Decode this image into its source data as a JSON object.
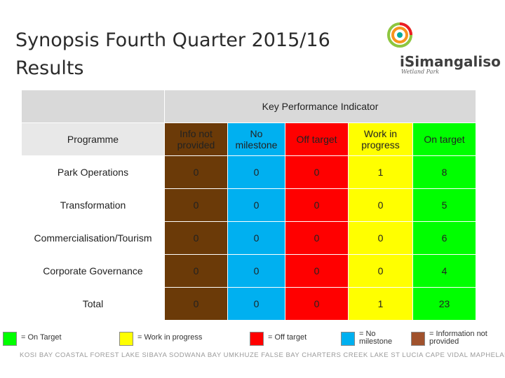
{
  "title_line1": "Synopsis Fourth Quarter 2015/16",
  "title_line2": "Results",
  "logo": {
    "name": "iSimangaliso",
    "tagline": "Wetland Park"
  },
  "table": {
    "kpi_header": "Key Performance Indicator",
    "programme_header": "Programme",
    "columns": [
      "Info not provided",
      "No milestone",
      "Off target",
      "Work in progress",
      "On target"
    ],
    "rows": [
      {
        "name": "Park Operations",
        "values": [
          "0",
          "0",
          "0",
          "1",
          "8"
        ]
      },
      {
        "name": "Transformation",
        "values": [
          "0",
          "0",
          "0",
          "0",
          "5"
        ]
      },
      {
        "name": "Commercialisation/Tourism",
        "values": [
          "0",
          "0",
          "0",
          "0",
          "6"
        ]
      },
      {
        "name": "Corporate Governance",
        "values": [
          "0",
          "0",
          "0",
          "0",
          "4"
        ]
      },
      {
        "name": "Total",
        "values": [
          "0",
          "0",
          "0",
          "1",
          "23"
        ]
      }
    ]
  },
  "legend": [
    {
      "label": "= On Target",
      "color": "#00ff00"
    },
    {
      "label": "= Work in progress",
      "color": "#ffff00"
    },
    {
      "label": "= Off target",
      "color": "#ff0000"
    },
    {
      "label": "= No milestone",
      "color": "#00b0f0"
    },
    {
      "label": "= Information not provided",
      "color": "#a0522d"
    }
  ],
  "places": "KOSI BAY  COASTAL FOREST  LAKE SIBAYA  SODWANA BAY  UMKHUZE  FALSE BAY  CHARTERS CREEK  LAKE ST LUCIA  CAPE VIDAL  MAPHELANE"
}
